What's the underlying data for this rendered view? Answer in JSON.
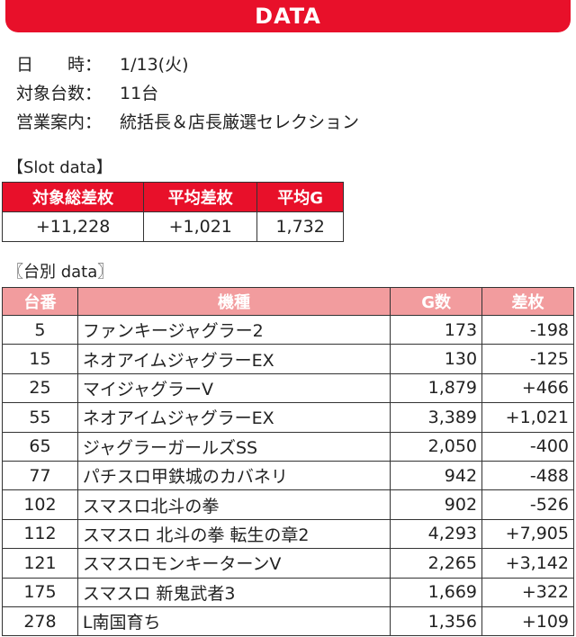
{
  "header": {
    "title": "DATA"
  },
  "info": [
    {
      "key": "日　　時：",
      "value": "1/13(火)"
    },
    {
      "key": "対象台数：",
      "value": "11台"
    },
    {
      "key": "営業案内：",
      "value": "統括長＆店長厳選セレクション"
    }
  ],
  "slot_section": {
    "label": "【Slot data】",
    "headers": [
      "対象総差枚",
      "平均差枚",
      "平均G"
    ],
    "values": [
      "+11,228",
      "+1,021",
      "1,732"
    ]
  },
  "unit_section": {
    "label": "〖台別 data〗",
    "headers": [
      "台番",
      "機種",
      "G数",
      "差枚"
    ],
    "rows": [
      [
        "5",
        "ファンキージャグラー2",
        "173",
        "-198"
      ],
      [
        "15",
        "ネオアイムジャグラーEX",
        "130",
        "-125"
      ],
      [
        "25",
        "マイジャグラーⅤ",
        "1,879",
        "+466"
      ],
      [
        "55",
        "ネオアイムジャグラーEX",
        "3,389",
        "+1,021"
      ],
      [
        "65",
        "ジャグラーガールズSS",
        "2,050",
        "-400"
      ],
      [
        "77",
        "パチスロ甲鉄城のカバネリ",
        "942",
        "-488"
      ],
      [
        "102",
        "スマスロ北斗の拳",
        "902",
        "-526"
      ],
      [
        "112",
        "スマスロ 北斗の拳 転生の章2",
        "4,293",
        "+7,905"
      ],
      [
        "121",
        "スマスロモンキーターンV",
        "2,265",
        "+3,142"
      ],
      [
        "175",
        "スマスロ 新鬼武者3",
        "1,669",
        "+322"
      ],
      [
        "278",
        "L南国育ち",
        "1,356",
        "+109"
      ]
    ]
  },
  "colors": {
    "accent": "#e8102a",
    "header_pink": "#f29c9e"
  }
}
